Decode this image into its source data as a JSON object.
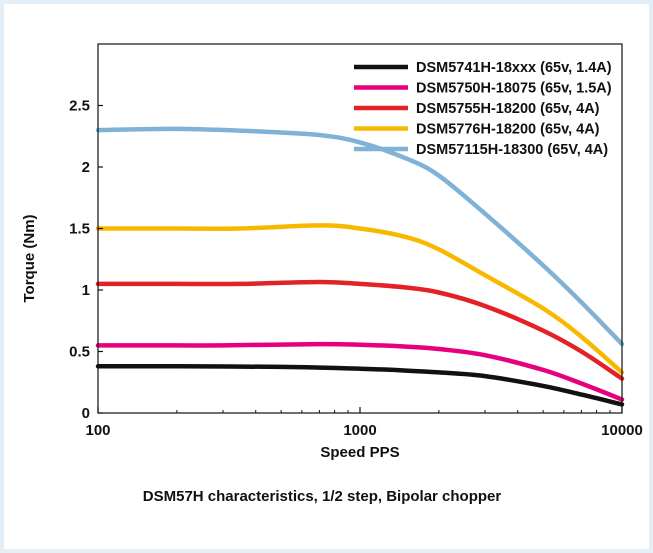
{
  "chart_data": {
    "type": "line",
    "xlabel": "Speed PPS",
    "ylabel": "Torque (Nm)",
    "caption": "DSM57H characteristics, 1/2 step, Bipolar chopper",
    "x_scale": "log",
    "xlim": [
      100,
      10000
    ],
    "ylim": [
      0,
      3.0
    ],
    "x_ticks": [
      100,
      1000,
      10000
    ],
    "x_tick_labels": [
      "100",
      "1000",
      "10000"
    ],
    "y_ticks": [
      0,
      0.5,
      1,
      1.5,
      2,
      2.5
    ],
    "y_tick_labels": [
      "0",
      "0.5",
      "1",
      "1.5",
      "2",
      "2.5"
    ],
    "legend_position": "top-right",
    "series": [
      {
        "name": "DSM5741H-18xxx (65v, 1.4A)",
        "color": "#111111",
        "points": [
          [
            100,
            0.38
          ],
          [
            200,
            0.38
          ],
          [
            500,
            0.375
          ],
          [
            1000,
            0.36
          ],
          [
            1500,
            0.345
          ],
          [
            2000,
            0.33
          ],
          [
            3000,
            0.3
          ],
          [
            5000,
            0.22
          ],
          [
            7000,
            0.15
          ],
          [
            10000,
            0.07
          ]
        ]
      },
      {
        "name": "DSM5750H-18075 (65v, 1.5A)",
        "color": "#e6007e",
        "points": [
          [
            100,
            0.55
          ],
          [
            200,
            0.55
          ],
          [
            300,
            0.55
          ],
          [
            700,
            0.56
          ],
          [
            1000,
            0.555
          ],
          [
            1500,
            0.54
          ],
          [
            2000,
            0.52
          ],
          [
            3000,
            0.47
          ],
          [
            5000,
            0.35
          ],
          [
            7000,
            0.24
          ],
          [
            10000,
            0.11
          ]
        ]
      },
      {
        "name": "DSM5755H-18200 (65v, 4A)",
        "color": "#e32228",
        "points": [
          [
            100,
            1.05
          ],
          [
            200,
            1.05
          ],
          [
            350,
            1.05
          ],
          [
            700,
            1.065
          ],
          [
            1000,
            1.05
          ],
          [
            1500,
            1.02
          ],
          [
            2000,
            0.98
          ],
          [
            3000,
            0.87
          ],
          [
            5000,
            0.67
          ],
          [
            7000,
            0.5
          ],
          [
            10000,
            0.28
          ]
        ]
      },
      {
        "name": "DSM5776H-18200 (65v, 4A)",
        "color": "#f9b800",
        "points": [
          [
            100,
            1.5
          ],
          [
            200,
            1.5
          ],
          [
            350,
            1.5
          ],
          [
            700,
            1.525
          ],
          [
            1000,
            1.5
          ],
          [
            1500,
            1.43
          ],
          [
            2000,
            1.33
          ],
          [
            3000,
            1.12
          ],
          [
            5000,
            0.85
          ],
          [
            7000,
            0.62
          ],
          [
            10000,
            0.33
          ]
        ]
      },
      {
        "name": "DSM57115H-18300 (65V, 4A)",
        "color": "#7fb2d6",
        "points": [
          [
            100,
            2.3
          ],
          [
            200,
            2.31
          ],
          [
            400,
            2.29
          ],
          [
            700,
            2.26
          ],
          [
            1000,
            2.2
          ],
          [
            1500,
            2.07
          ],
          [
            2000,
            1.93
          ],
          [
            3000,
            1.62
          ],
          [
            5000,
            1.2
          ],
          [
            7000,
            0.9
          ],
          [
            10000,
            0.56
          ]
        ]
      }
    ]
  }
}
